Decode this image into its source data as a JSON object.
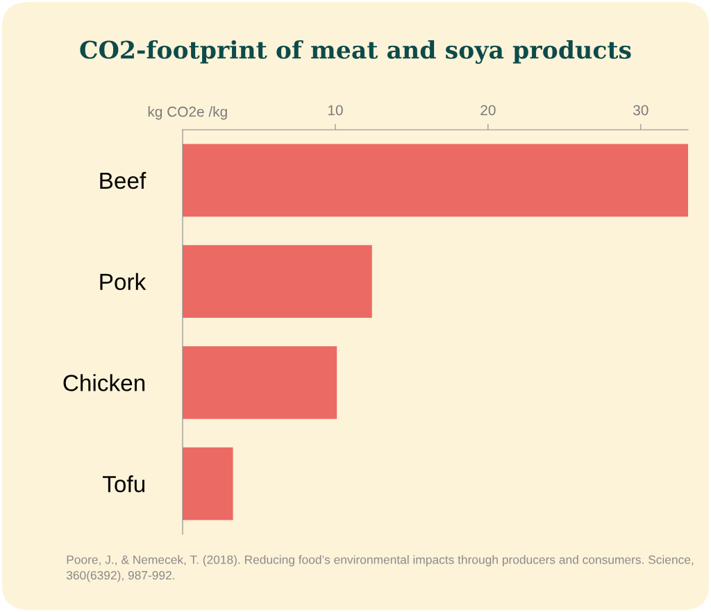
{
  "chart_data": {
    "type": "bar",
    "orientation": "horizontal",
    "title": "CO2-footprint of meat and soya products",
    "xlabel": "kg CO2e /kg",
    "categories": [
      "Beef",
      "Pork",
      "Chicken",
      "Tofu"
    ],
    "values": [
      33.1,
      12.4,
      10.1,
      3.3
    ],
    "color": "#ec6a64",
    "xlim": [
      0,
      33.1
    ],
    "xticks": [
      10,
      20,
      30
    ],
    "grid": false,
    "annotations": [
      "Poore, J., & Nemecek, T. (2018). Reducing food’s environmental impacts through producers and consumers. Science, 360(6392), 987-992."
    ]
  }
}
